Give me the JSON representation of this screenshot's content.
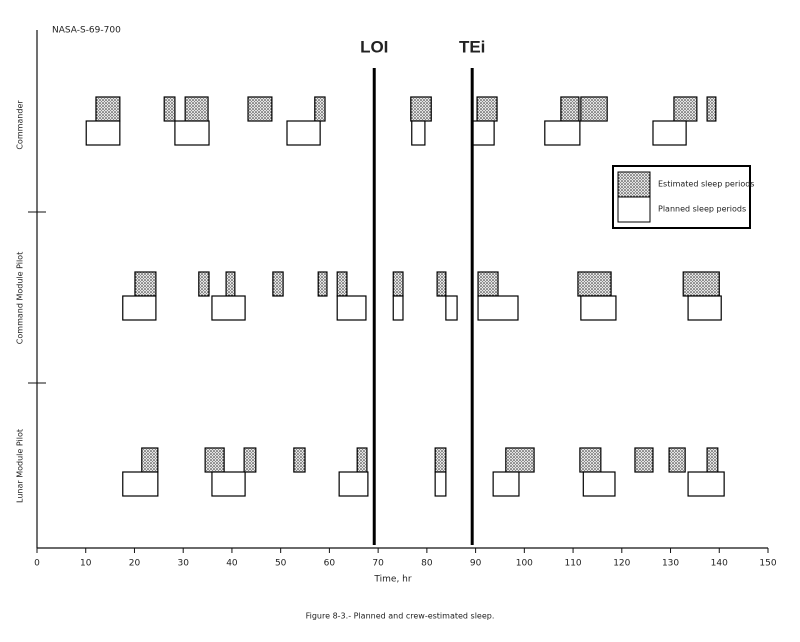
{
  "chart_data": {
    "type": "gantt",
    "title": "Figure 8-3.- Planned and crew-estimated sleep.",
    "note": "NASA-S-69-700",
    "x_label": "Time, hr",
    "xlim": [
      0,
      150
    ],
    "xticks": [
      0,
      10,
      20,
      30,
      40,
      50,
      60,
      70,
      80,
      90,
      100,
      110,
      120,
      130,
      140,
      150
    ],
    "rows": [
      "Commander",
      "Command Module Pilot",
      "Lunar Module Pilot"
    ],
    "legend": "upper right",
    "markers": [
      {
        "label": "LOI",
        "x": 69.2
      },
      {
        "label": "TEi",
        "x": 89.3
      }
    ],
    "series": [
      {
        "name": "Estimated sleep periods",
        "fill": "stipple",
        "color": "#000000",
        "periods": [
          [
            [
              12.1,
              17.0
            ],
            [
              26.1,
              28.3
            ],
            [
              30.4,
              35.1
            ],
            [
              43.3,
              48.2
            ],
            [
              57.0,
              59.1
            ],
            [
              76.7,
              80.9
            ],
            [
              90.3,
              94.4
            ],
            [
              107.5,
              111.2
            ],
            [
              111.6,
              117.0
            ],
            [
              130.7,
              135.4
            ],
            [
              137.5,
              139.3
            ]
          ],
          [
            [
              20.1,
              24.4
            ],
            [
              33.2,
              35.3
            ],
            [
              38.8,
              40.6
            ],
            [
              48.4,
              50.5
            ],
            [
              57.7,
              59.5
            ],
            [
              61.6,
              63.6
            ],
            [
              73.1,
              75.1
            ],
            [
              82.1,
              83.9
            ],
            [
              90.5,
              94.6
            ],
            [
              111.0,
              117.8
            ],
            [
              132.6,
              140.0
            ]
          ],
          [
            [
              21.5,
              24.8
            ],
            [
              34.5,
              38.4
            ],
            [
              42.5,
              44.9
            ],
            [
              52.7,
              55.0
            ],
            [
              65.7,
              67.7
            ],
            [
              81.7,
              83.9
            ],
            [
              96.2,
              102.0
            ],
            [
              111.4,
              115.7
            ],
            [
              122.7,
              126.4
            ],
            [
              129.7,
              133.0
            ],
            [
              137.5,
              139.7
            ]
          ]
        ]
      },
      {
        "name": "Planned sleep periods",
        "fill": "none",
        "color": "#000000",
        "periods": [
          [
            [
              10.1,
              17.0
            ],
            [
              28.3,
              35.3
            ],
            [
              51.3,
              58.1
            ],
            [
              76.9,
              79.6
            ],
            [
              89.3,
              93.8
            ],
            [
              104.2,
              111.4
            ],
            [
              126.4,
              133.2
            ]
          ],
          [
            [
              17.6,
              24.4
            ],
            [
              35.9,
              42.7
            ],
            [
              61.6,
              67.5
            ],
            [
              73.1,
              75.1
            ],
            [
              83.9,
              86.2
            ],
            [
              90.5,
              98.7
            ],
            [
              111.6,
              118.8
            ],
            [
              133.6,
              140.4
            ]
          ],
          [
            [
              17.6,
              24.8
            ],
            [
              35.9,
              42.7
            ],
            [
              62.0,
              67.9
            ],
            [
              81.7,
              83.9
            ],
            [
              93.6,
              98.9
            ],
            [
              112.1,
              118.6
            ],
            [
              133.6,
              141.0
            ]
          ]
        ]
      }
    ]
  }
}
